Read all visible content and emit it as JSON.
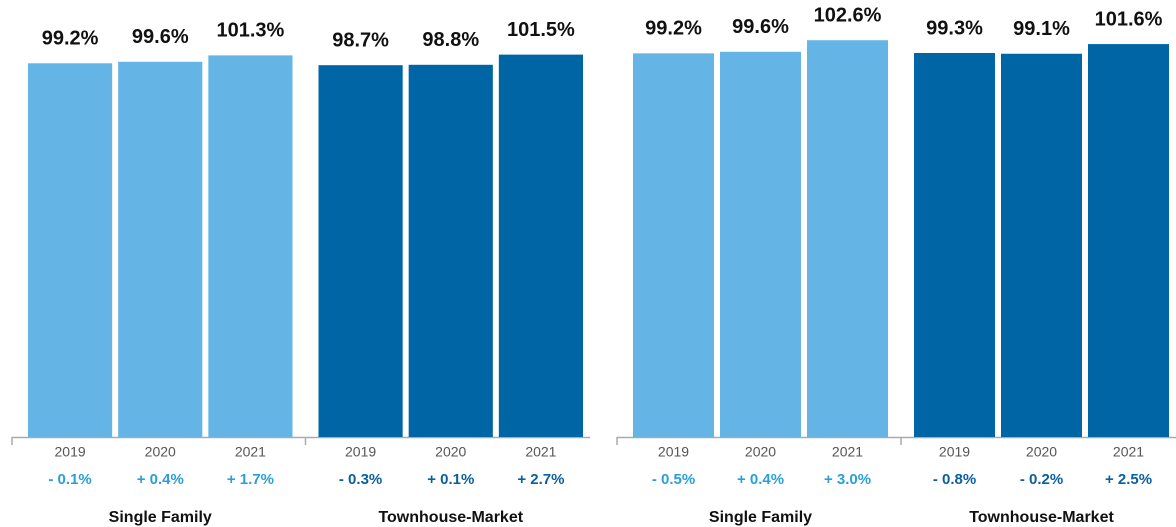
{
  "chart_data": [
    {
      "type": "bar",
      "categories": [
        "2019",
        "2020",
        "2021"
      ],
      "ylim": [
        0,
        116
      ],
      "series": [
        {
          "name": "Single Family",
          "color": "#64b5e5",
          "change_color": "#2a9fd8",
          "values": [
            99.2,
            99.6,
            101.3
          ],
          "value_labels": [
            "99.2%",
            "99.6%",
            "101.3%"
          ],
          "changes": [
            "- 0.1%",
            "+ 0.4%",
            "+ 1.7%"
          ]
        },
        {
          "name": "Townhouse-Market",
          "color": "#0065a4",
          "change_color": "#0a5f9c",
          "values": [
            98.7,
            98.8,
            101.5
          ],
          "value_labels": [
            "98.7%",
            "98.8%",
            "101.5%"
          ],
          "changes": [
            "- 0.3%",
            "+ 0.1%",
            "+ 2.7%"
          ]
        }
      ]
    },
    {
      "type": "bar",
      "categories": [
        "2019",
        "2020",
        "2021"
      ],
      "ylim": [
        0,
        113
      ],
      "series": [
        {
          "name": "Single Family",
          "color": "#64b5e5",
          "change_color": "#2a9fd8",
          "values": [
            99.2,
            99.6,
            102.6
          ],
          "value_labels": [
            "99.2%",
            "99.6%",
            "102.6%"
          ],
          "changes": [
            "- 0.5%",
            "+ 0.4%",
            "+ 3.0%"
          ]
        },
        {
          "name": "Townhouse-Market",
          "color": "#0065a4",
          "change_color": "#0a5f9c",
          "values": [
            99.3,
            99.1,
            101.6
          ],
          "value_labels": [
            "99.3%",
            "99.1%",
            "101.6%"
          ],
          "changes": [
            "- 0.8%",
            "- 0.2%",
            "+ 2.5%"
          ]
        }
      ]
    }
  ]
}
